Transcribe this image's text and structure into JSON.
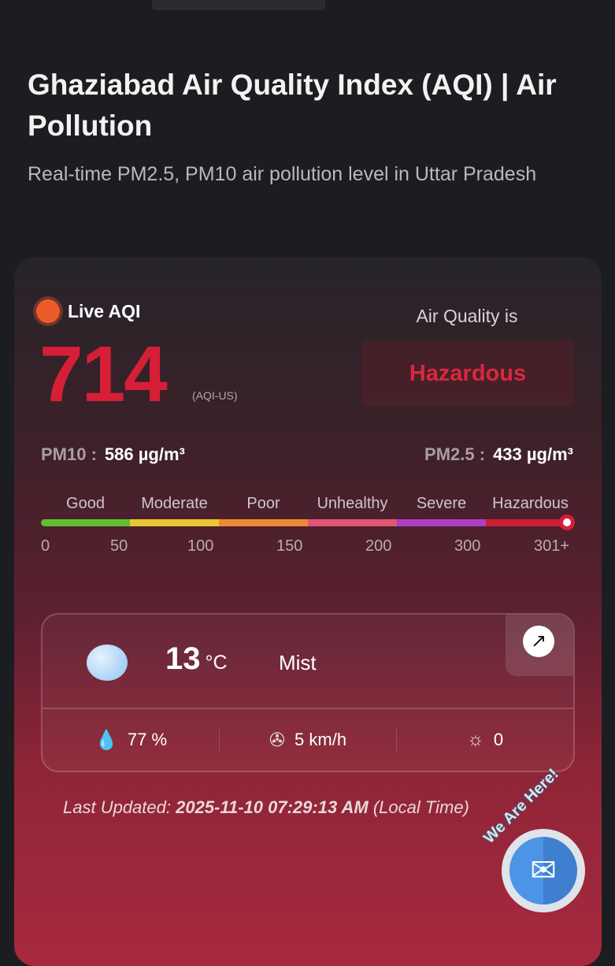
{
  "header": {
    "title": "Ghaziabad Air Quality Index (AQI) | Air Pollution",
    "subtitle": "Real-time PM2.5, PM10 air pollution level in Uttar Pradesh"
  },
  "aqi": {
    "live_label": "Live AQI",
    "value": "714",
    "unit": "(AQI-US)",
    "status_label": "Air Quality is",
    "status": "Hazardous",
    "status_color": "#d61f36"
  },
  "pollutants": {
    "pm10_label": "PM10 :",
    "pm10_value": "586 µg/m³",
    "pm25_label": "PM2.5 :",
    "pm25_value": "433 µg/m³"
  },
  "scale": {
    "categories": [
      "Good",
      "Moderate",
      "Poor",
      "Unhealthy",
      "Severe",
      "Hazardous"
    ],
    "colors": [
      "#5fbf2e",
      "#eac532",
      "#ec8a34",
      "#e05574",
      "#b03ec0",
      "#cc1f38"
    ],
    "ticks": [
      "0",
      "50",
      "100",
      "150",
      "200",
      "300",
      "301+"
    ],
    "current_category": "Hazardous"
  },
  "weather": {
    "temperature": "13",
    "temp_unit": "°C",
    "condition": "Mist",
    "humidity": "77 %",
    "wind": "5 km/h",
    "uv": "0",
    "icons": [
      "mist-cloud-icon",
      "humidity-icon",
      "wind-turbine-icon",
      "uv-index-icon",
      "external-link-icon"
    ]
  },
  "updated": {
    "label": "Last Updated:",
    "value": "2025-11-10 07:29:13 AM",
    "suffix": "(Local Time)"
  },
  "contact": {
    "badge_text": "We Are Here!",
    "icon": "mail-icon"
  }
}
